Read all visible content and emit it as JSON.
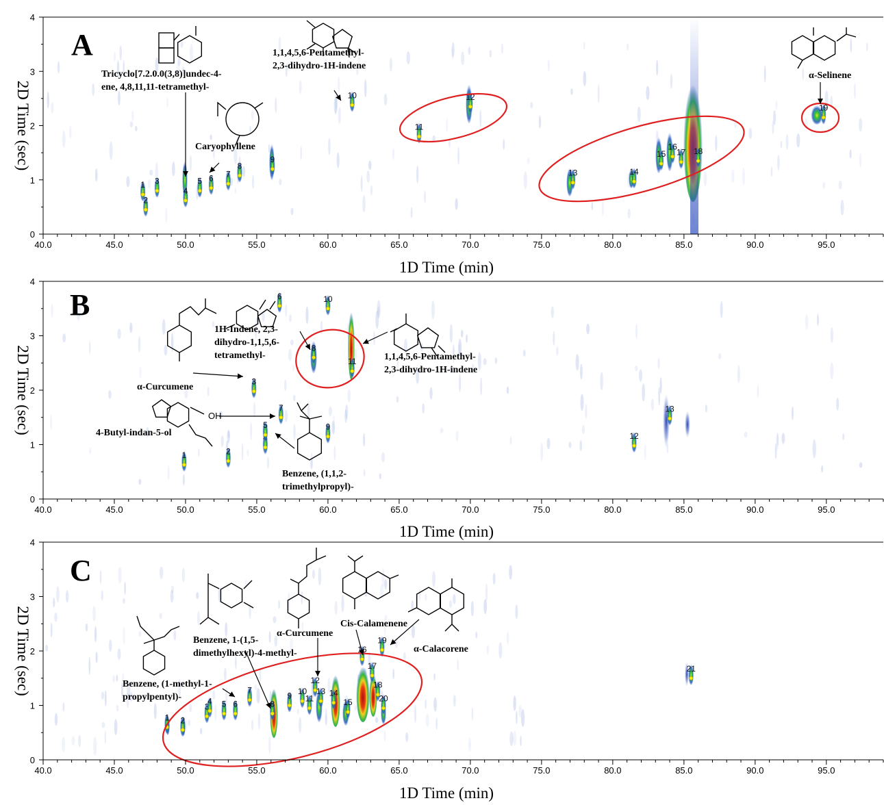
{
  "chart_data": [
    {
      "type": "heatmap",
      "panel": "A",
      "xlabel": "1D Time (min)",
      "ylabel": "2D Time (sec)",
      "xlim": [
        40,
        99
      ],
      "ylim": [
        0,
        4
      ],
      "xticks": [
        "40.0",
        "45.0",
        "50.0",
        "55.0",
        "60.0",
        "65.0",
        "70.0",
        "75.0",
        "80.0",
        "85.0",
        "90.0",
        "95.0"
      ],
      "yticks": [
        "0",
        "1",
        "2",
        "3",
        "4"
      ],
      "peaks": [
        {
          "label": "1",
          "x": 47.0,
          "y": 0.73
        },
        {
          "label": "2",
          "x": 47.2,
          "y": 0.45
        },
        {
          "label": "3",
          "x": 48.0,
          "y": 0.8
        },
        {
          "label": "4",
          "x": 50.0,
          "y": 0.62
        },
        {
          "label": "5",
          "x": 51.0,
          "y": 0.8
        },
        {
          "label": "6",
          "x": 51.8,
          "y": 0.85
        },
        {
          "label": "7",
          "x": 53.0,
          "y": 0.93
        },
        {
          "label": "8",
          "x": 53.8,
          "y": 1.08
        },
        {
          "label": "9",
          "x": 56.1,
          "y": 1.2
        },
        {
          "label": "10",
          "x": 61.7,
          "y": 2.38
        },
        {
          "label": "11",
          "x": 66.4,
          "y": 1.8
        },
        {
          "label": "12",
          "x": 70.0,
          "y": 2.35
        },
        {
          "label": "13",
          "x": 77.2,
          "y": 0.95
        },
        {
          "label": "14",
          "x": 81.5,
          "y": 0.97
        },
        {
          "label": "15",
          "x": 83.4,
          "y": 1.3
        },
        {
          "label": "16",
          "x": 84.2,
          "y": 1.43
        },
        {
          "label": "17",
          "x": 84.8,
          "y": 1.33
        },
        {
          "label": "18",
          "x": 86.0,
          "y": 1.35
        },
        {
          "label": "19",
          "x": 94.8,
          "y": 2.15
        }
      ],
      "compounds": [
        {
          "text": [
            "Tricyclo[7.2.0.0(3,8)]undec-4-",
            "ene, 4,8,11,11-tetramethyl-"
          ]
        },
        {
          "text": [
            "Caryophyllene"
          ]
        },
        {
          "text": [
            "1,1,4,5,6-Pentamethyl-",
            "2,3-dihydro-1H-indene"
          ]
        },
        {
          "text": [
            "α-Selinene"
          ]
        }
      ]
    },
    {
      "type": "heatmap",
      "panel": "B",
      "xlabel": "1D Time (min)",
      "ylabel": "2D Time (sec)",
      "xlim": [
        40,
        99
      ],
      "ylim": [
        0,
        4
      ],
      "xticks": [
        "40.0",
        "45.0",
        "50.0",
        "55.0",
        "60.0",
        "65.0",
        "70.0",
        "75.0",
        "80.0",
        "85.0",
        "90.0",
        "95.0"
      ],
      "yticks": [
        "0",
        "1",
        "2",
        "3",
        "4"
      ],
      "peaks": [
        {
          "label": "1",
          "x": 49.9,
          "y": 0.63
        },
        {
          "label": "2",
          "x": 53.0,
          "y": 0.7
        },
        {
          "label": "3",
          "x": 54.8,
          "y": 1.98
        },
        {
          "label": "4",
          "x": 55.6,
          "y": 0.95
        },
        {
          "label": "5",
          "x": 55.6,
          "y": 1.18
        },
        {
          "label": "6",
          "x": 56.6,
          "y": 3.55
        },
        {
          "label": "7",
          "x": 56.7,
          "y": 1.5
        },
        {
          "label": "8",
          "x": 59.0,
          "y": 2.6
        },
        {
          "label": "9",
          "x": 60.0,
          "y": 1.15
        },
        {
          "label": "10",
          "x": 60.0,
          "y": 3.5
        },
        {
          "label": "11",
          "x": 61.7,
          "y": 2.35
        },
        {
          "label": "12",
          "x": 81.5,
          "y": 0.98
        },
        {
          "label": "13",
          "x": 84.0,
          "y": 1.48
        }
      ],
      "compounds": [
        {
          "text": [
            "1H-Indene, 2,3-",
            "dihydro-1,1,5,6-",
            "tetramethyl-"
          ]
        },
        {
          "text": [
            "1,1,4,5,6-Pentamethyl-",
            "2,3-dihydro-1H-indene"
          ]
        },
        {
          "text": [
            "α-Curcumene"
          ]
        },
        {
          "text": [
            "4-Butyl-indan-5-ol"
          ]
        },
        {
          "text": [
            "Benzene, (1,1,2-",
            "trimethylpropyl)-"
          ]
        }
      ]
    },
    {
      "type": "heatmap",
      "panel": "C",
      "xlabel": "1D Time (min)",
      "ylabel": "2D Time (sec)",
      "xlim": [
        40,
        99
      ],
      "ylim": [
        0,
        4
      ],
      "xticks": [
        "40.0",
        "45.0",
        "50.0",
        "55.0",
        "60.0",
        "65.0",
        "70.0",
        "75.0",
        "80.0",
        "85.0",
        "90.0",
        "95.0"
      ],
      "yticks": [
        "0",
        "1",
        "2",
        "3",
        "4"
      ],
      "peaks": [
        {
          "label": "1",
          "x": 48.7,
          "y": 0.6
        },
        {
          "label": "2",
          "x": 49.8,
          "y": 0.55
        },
        {
          "label": "3",
          "x": 51.5,
          "y": 0.8
        },
        {
          "label": "4",
          "x": 51.7,
          "y": 0.9
        },
        {
          "label": "5",
          "x": 52.7,
          "y": 0.85
        },
        {
          "label": "6",
          "x": 53.5,
          "y": 0.85
        },
        {
          "label": "7",
          "x": 54.5,
          "y": 1.1
        },
        {
          "label": "8",
          "x": 56.1,
          "y": 0.85
        },
        {
          "label": "9",
          "x": 57.3,
          "y": 1.0
        },
        {
          "label": "10",
          "x": 58.2,
          "y": 1.08
        },
        {
          "label": "11",
          "x": 58.7,
          "y": 0.95
        },
        {
          "label": "12",
          "x": 59.1,
          "y": 1.28
        },
        {
          "label": "13",
          "x": 59.5,
          "y": 1.08
        },
        {
          "label": "14",
          "x": 60.4,
          "y": 1.05
        },
        {
          "label": "15",
          "x": 61.4,
          "y": 0.88
        },
        {
          "label": "16",
          "x": 62.4,
          "y": 1.85
        },
        {
          "label": "17",
          "x": 63.1,
          "y": 1.55
        },
        {
          "label": "18",
          "x": 63.5,
          "y": 1.2
        },
        {
          "label": "19",
          "x": 63.8,
          "y": 2.02
        },
        {
          "label": "20",
          "x": 63.9,
          "y": 0.95
        },
        {
          "label": "21",
          "x": 85.5,
          "y": 1.5
        }
      ],
      "compounds": [
        {
          "text": [
            "Benzene, 1-(1,5-",
            "dimethylhexyl)-4-methyl-"
          ]
        },
        {
          "text": [
            "α-Curcumene"
          ]
        },
        {
          "text": [
            "Cis-Calamenene"
          ]
        },
        {
          "text": [
            "α-Calacorene"
          ]
        },
        {
          "text": [
            "Benzene, (1-methyl-1-",
            "propylpentyl)-"
          ]
        }
      ]
    }
  ],
  "colors": {
    "low": "#3050c8",
    "mid": "#28c828",
    "high": "#c81e1e",
    "ellipse": "#e02020",
    "marker": "#f0f000"
  }
}
